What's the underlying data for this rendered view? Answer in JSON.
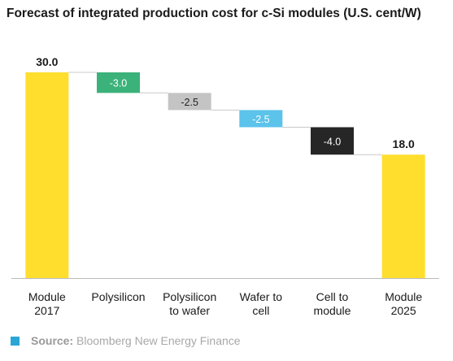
{
  "title": "Forecast of integrated production cost for c-Si modules (U.S. cent/W)",
  "source": {
    "label": "Source:",
    "text": "Bloomberg New Energy Finance"
  },
  "colors": {
    "total": "#ffde2e",
    "polysilicon": "#3bb27a",
    "wafer": "#c4c4c4",
    "cell": "#5cc3ea",
    "module": "#262626",
    "axis": "#bbbbbb",
    "connector": "#c8c8c8"
  },
  "chart_data": {
    "type": "waterfall",
    "title": "Forecast of integrated production cost for c-Si modules (U.S. cent/W)",
    "categories": [
      "Module\n2017",
      "Polysilicon",
      "Polysilicon\nto wafer",
      "Wafer to\ncell",
      "Cell to\nmodule",
      "Module\n2025"
    ],
    "values": [
      30.0,
      -3.0,
      -2.5,
      -2.5,
      -4.0,
      18.0
    ],
    "labels": [
      "30.0",
      "-3.0",
      "-2.5",
      "-2.5",
      "-4.0",
      "18.0"
    ],
    "kinds": [
      "total",
      "delta",
      "delta",
      "delta",
      "delta",
      "total"
    ],
    "bar_colors": [
      "total",
      "polysilicon",
      "wafer",
      "cell",
      "module",
      "total"
    ],
    "ylim": [
      0,
      30
    ],
    "grid": false,
    "legend": "none"
  }
}
